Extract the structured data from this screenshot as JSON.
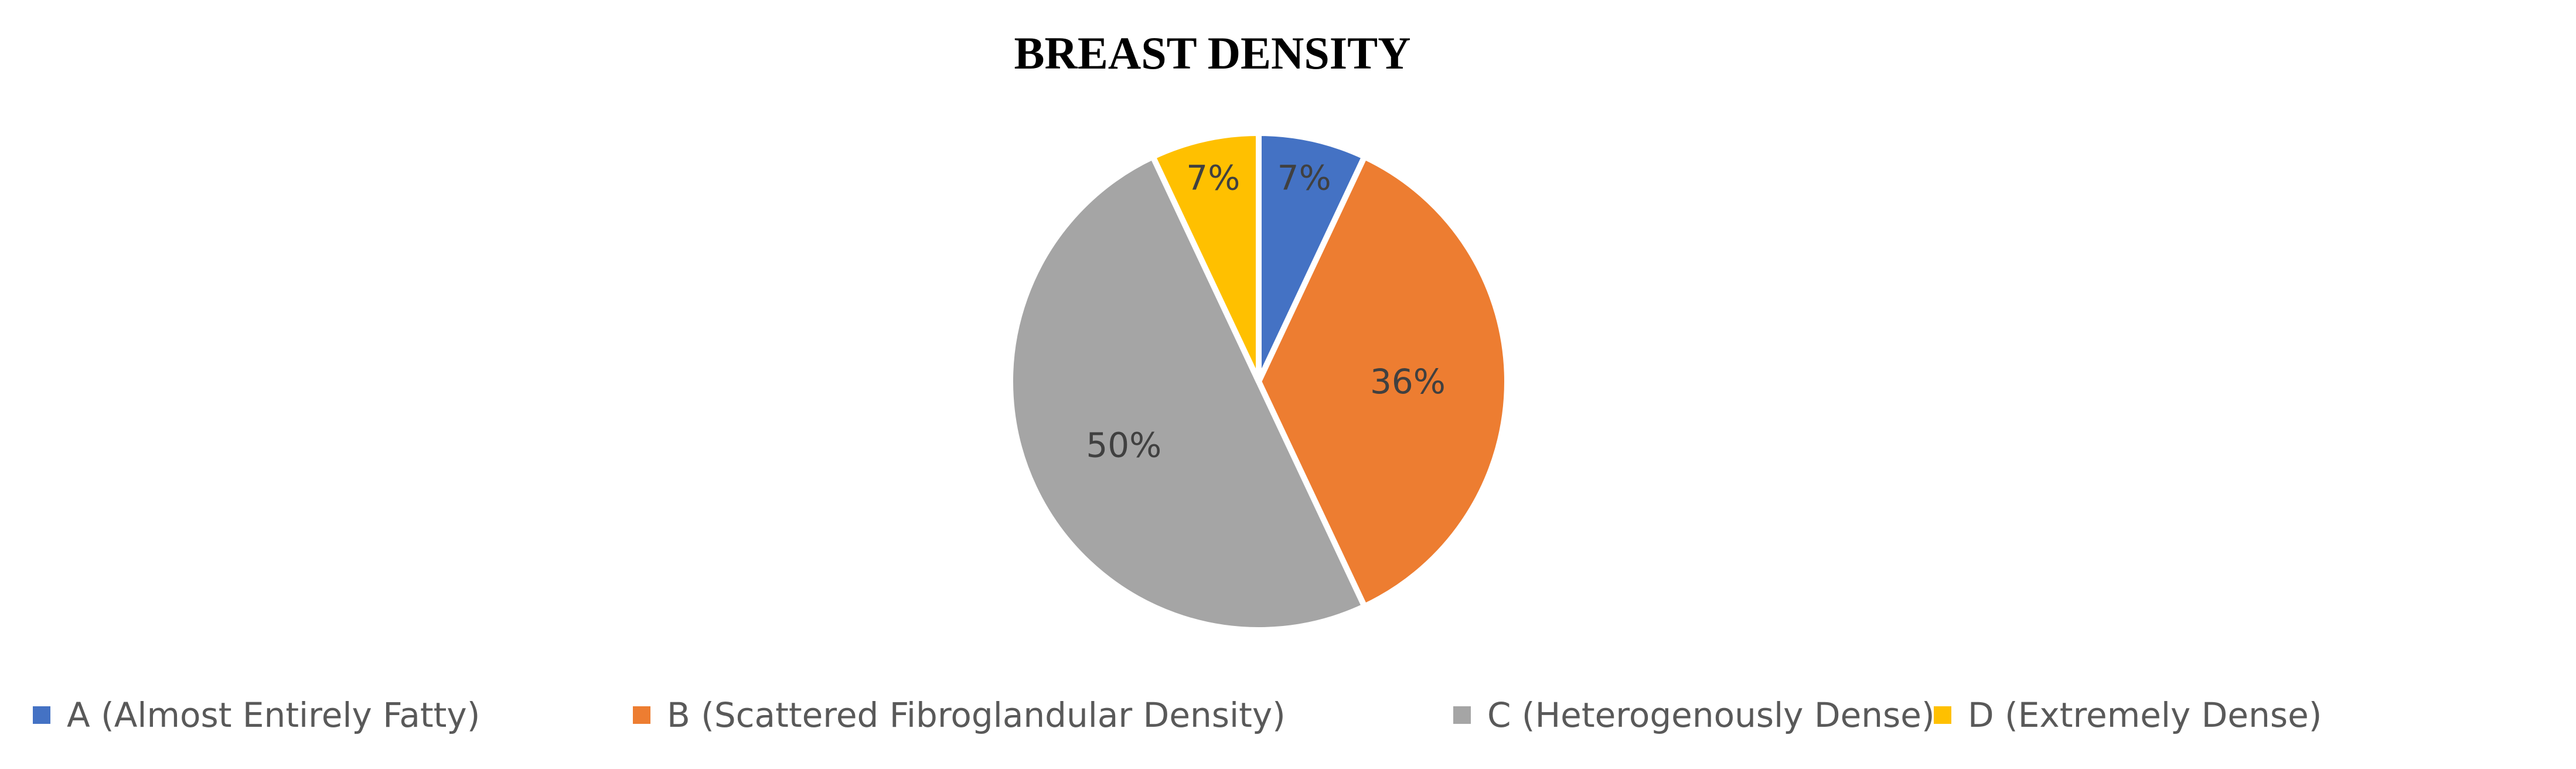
{
  "chart_data": {
    "type": "pie",
    "title": "BREAST DENSITY",
    "categories": [
      "A (Almost Entirely Fatty)",
      "B (Scattered Fibroglandular Density)",
      "C (Heterogenously Dense)",
      "D (Extremely Dense)"
    ],
    "values": [
      7,
      36,
      50,
      7
    ],
    "data_labels": [
      "7%",
      "36%",
      "50%",
      "7%"
    ],
    "colors": [
      "#4472C4",
      "#ED7D31",
      "#A5A5A5",
      "#FFC000"
    ],
    "legend_position": "bottom",
    "start_angle": "12 o'clock",
    "direction": "clockwise"
  }
}
